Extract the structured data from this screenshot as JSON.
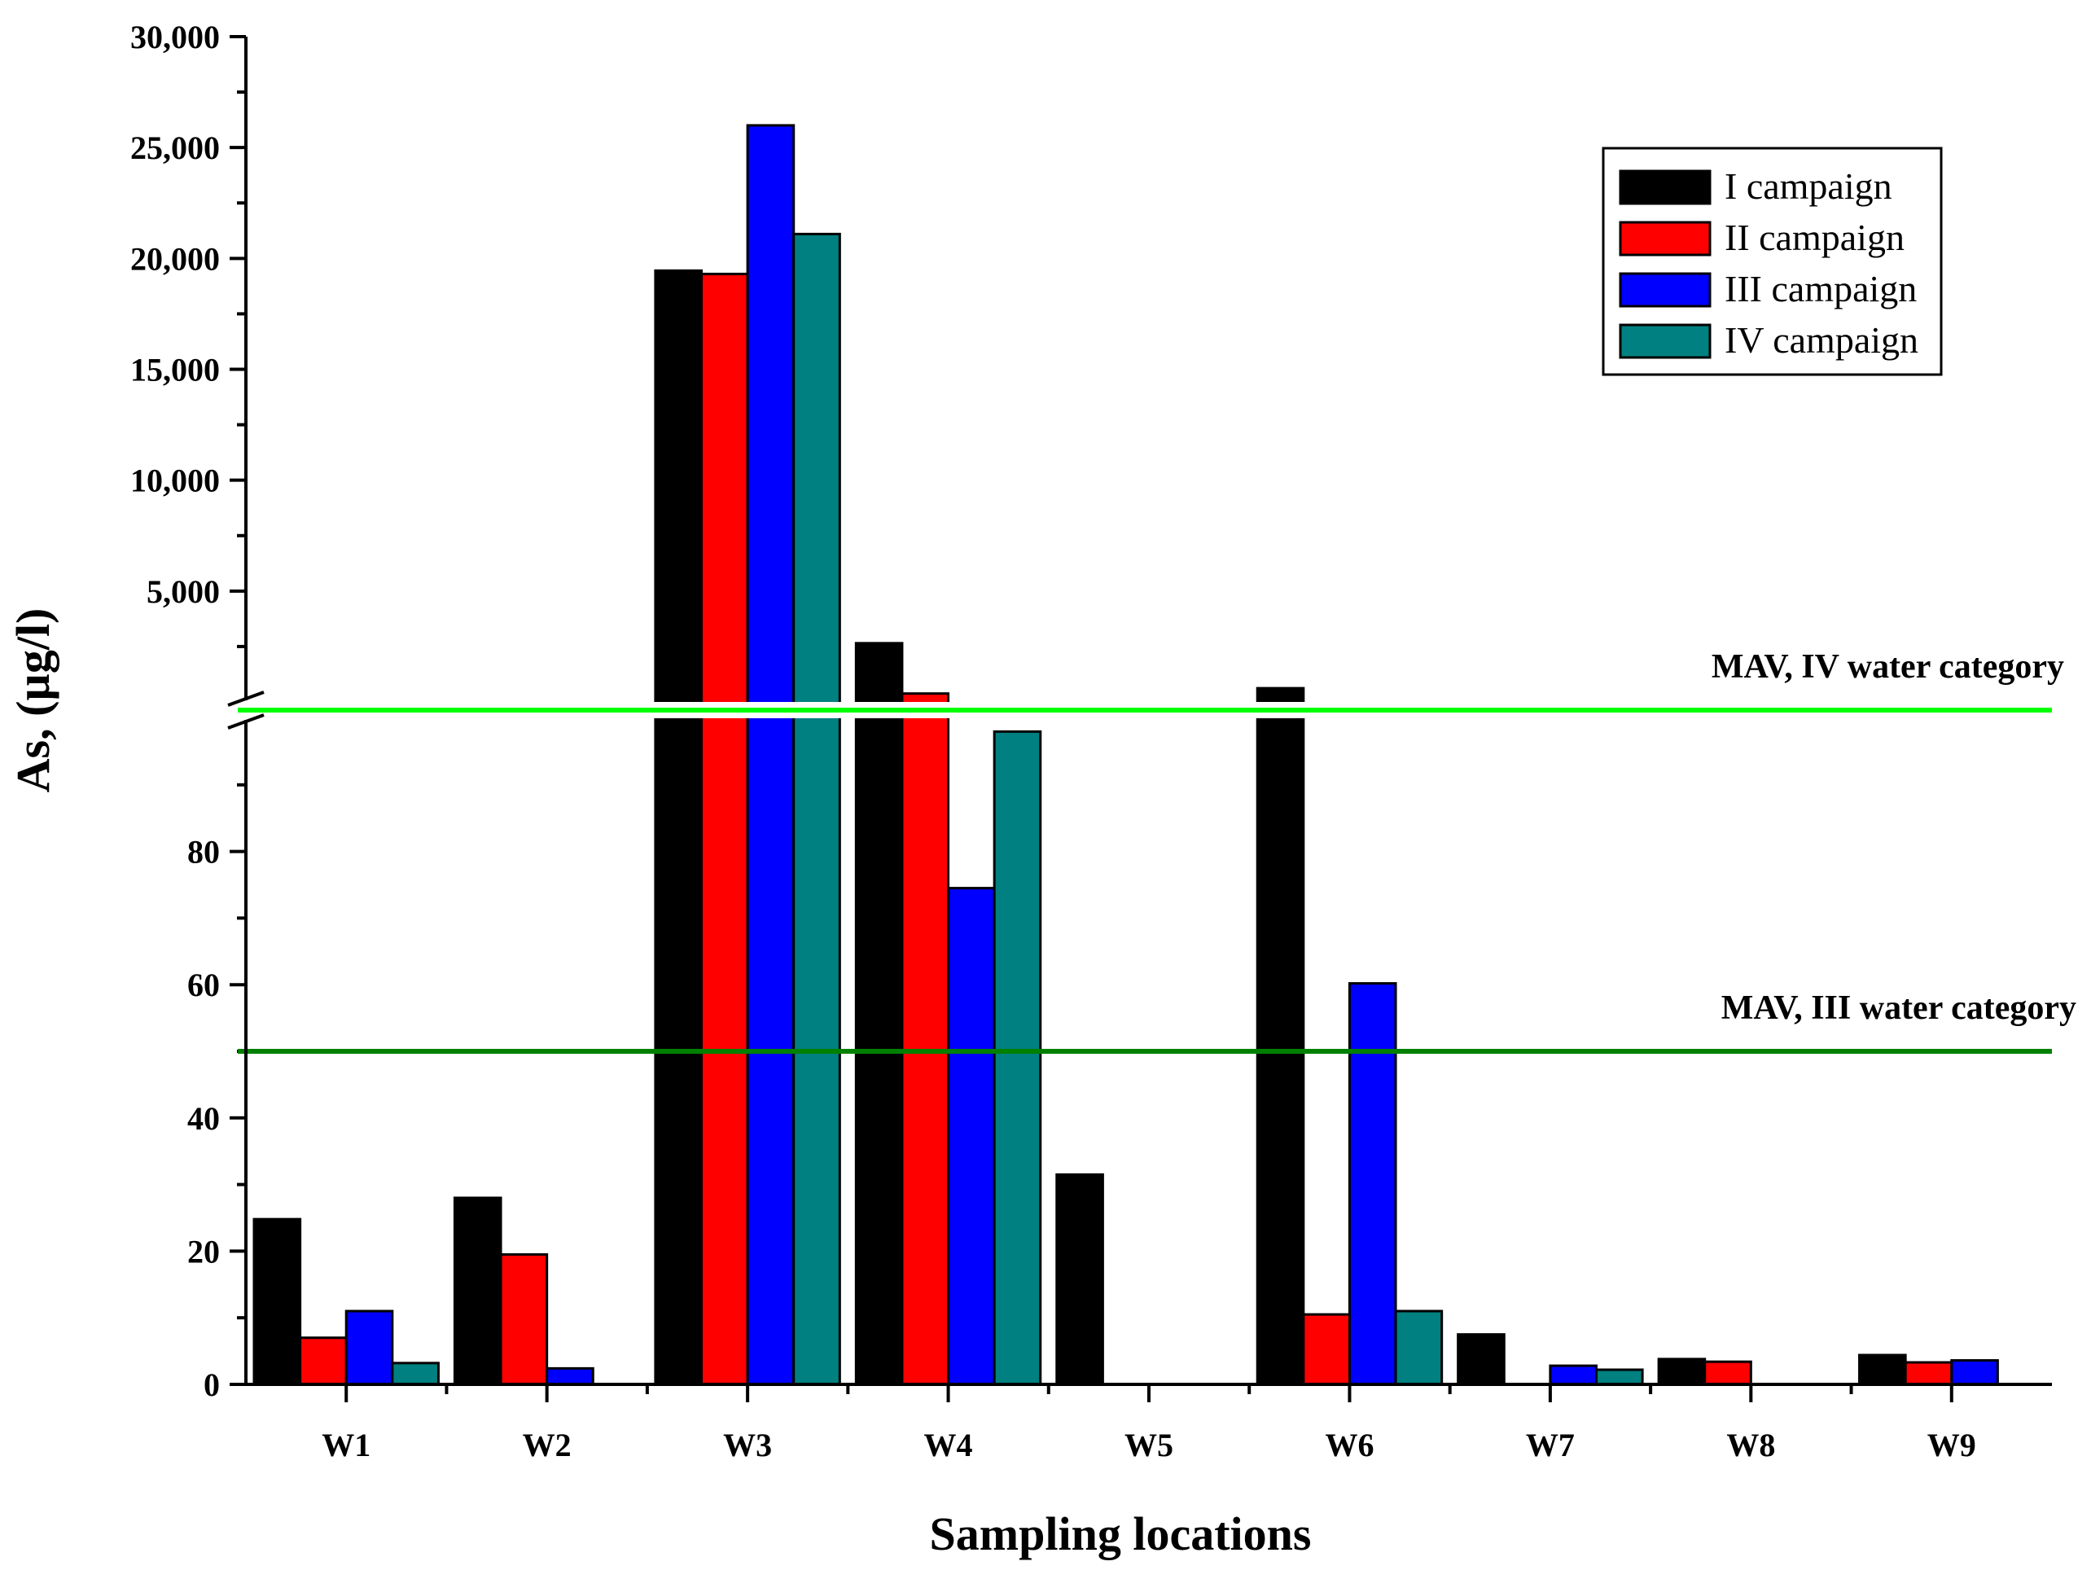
{
  "chart_data": {
    "type": "bar",
    "title": "",
    "xlabel": "Sampling locations",
    "ylabel": "As, (µg/l)",
    "categories": [
      "W1",
      "W2",
      "W3",
      "W4",
      "W5",
      "W6",
      "W7",
      "W8",
      "W9"
    ],
    "series": [
      {
        "name": "I campaign",
        "color": "#000000",
        "values": [
          24.8,
          28,
          19450,
          2650,
          31.5,
          620,
          7.5,
          3.8,
          4.4
        ]
      },
      {
        "name": "II campaign",
        "color": "#ff0000",
        "values": [
          7,
          19.5,
          19300,
          380,
          null,
          10.5,
          null,
          3.4,
          3.3
        ]
      },
      {
        "name": "III campaign",
        "color": "#0000ff",
        "values": [
          11,
          2.4,
          26000,
          74.5,
          null,
          60.2,
          2.8,
          null,
          3.6
        ]
      },
      {
        "name": "IV campaign",
        "color": "#008080",
        "values": [
          3.2,
          null,
          21100,
          98,
          null,
          11,
          2.2,
          null,
          null
        ]
      }
    ],
    "y_axis_broken": true,
    "lower_segment": {
      "ylim": [
        0,
        100
      ],
      "ticks": [
        "0",
        "20",
        "40",
        "60",
        "80"
      ]
    },
    "upper_segment": {
      "ylim": [
        0,
        30000
      ],
      "ticks": [
        "5,000",
        "10,000",
        "15,000",
        "20,000",
        "25,000",
        "30,000"
      ]
    },
    "reference_lines": [
      {
        "label": "MAV, IV water category",
        "value": 100,
        "color": "#00ff00"
      },
      {
        "label": "MAV, III water category",
        "value": 50,
        "color": "#008000"
      }
    ],
    "legend_position": "top-right"
  }
}
